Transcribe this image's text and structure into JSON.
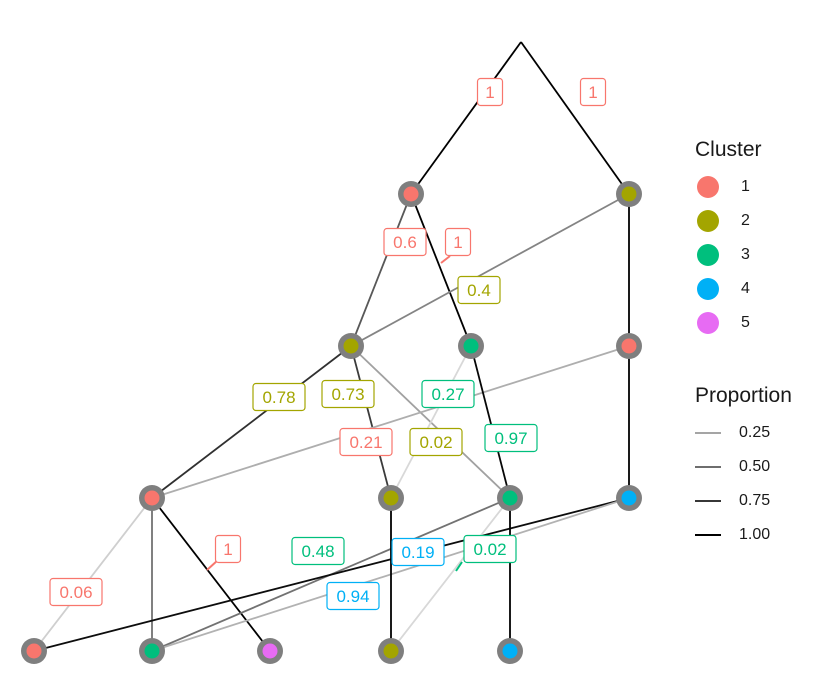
{
  "nodes": [
    {
      "id": "k1c1",
      "cluster": 1
    },
    {
      "id": "k2c1",
      "cluster": 1
    },
    {
      "id": "k2c2",
      "cluster": 2
    },
    {
      "id": "k3c2",
      "cluster": 2
    },
    {
      "id": "k3c3",
      "cluster": 3
    },
    {
      "id": "k3c1",
      "cluster": 1
    },
    {
      "id": "k4c1",
      "cluster": 1
    },
    {
      "id": "k4c2",
      "cluster": 2
    },
    {
      "id": "k4c3",
      "cluster": 3
    },
    {
      "id": "k4c4",
      "cluster": 4
    },
    {
      "id": "k5c1",
      "cluster": 1
    },
    {
      "id": "k5c3",
      "cluster": 3
    },
    {
      "id": "k5c5",
      "cluster": 5
    },
    {
      "id": "k5c2",
      "cluster": 2
    },
    {
      "id": "k5c4",
      "cluster": 4
    }
  ],
  "edges": [
    {
      "from": "k1c1",
      "to": "k2c1",
      "proportion": 1,
      "label": "1",
      "label_cluster": 1
    },
    {
      "from": "k1c1",
      "to": "k2c2",
      "proportion": 1,
      "label": "1",
      "label_cluster": 1
    },
    {
      "from": "k2c1",
      "to": "k3c2",
      "proportion": 0.6,
      "label": "0.6",
      "label_cluster": 1
    },
    {
      "from": "k2c1",
      "to": "k3c3",
      "proportion": 1,
      "label": "1",
      "label_cluster": 1
    },
    {
      "from": "k2c2",
      "to": "k3c2",
      "proportion": 0.4,
      "label": "0.4",
      "label_cluster": 2
    },
    {
      "from": "k2c2",
      "to": "k3c1",
      "proportion": 1,
      "label": "",
      "label_cluster": 2
    },
    {
      "from": "k3c2",
      "to": "k4c1",
      "proportion": 0.78,
      "label": "0.78",
      "label_cluster": 2
    },
    {
      "from": "k3c2",
      "to": "k4c2",
      "proportion": 0.73,
      "label": "0.73",
      "label_cluster": 2
    },
    {
      "from": "k3c2",
      "to": "k4c3",
      "proportion": 0.27,
      "label": "0.27",
      "label_cluster": 3
    },
    {
      "from": "k3c1",
      "to": "k4c1",
      "proportion": 0.21,
      "label": "0.21",
      "label_cluster": 1
    },
    {
      "from": "k3c3",
      "to": "k4c2",
      "proportion": 0.02,
      "label": "0.02",
      "label_cluster": 2
    },
    {
      "from": "k3c3",
      "to": "k4c3",
      "proportion": 0.97,
      "label": "0.97",
      "label_cluster": 3
    },
    {
      "from": "k3c1",
      "to": "k4c4",
      "proportion": 1,
      "label": "",
      "label_cluster": 4
    },
    {
      "from": "k4c1",
      "to": "k5c1",
      "proportion": 0.06,
      "label": "0.06",
      "label_cluster": 1
    },
    {
      "from": "k4c1",
      "to": "k5c3",
      "proportion": 0.48,
      "label": "",
      "label_cluster": 3
    },
    {
      "from": "k4c1",
      "to": "k5c5",
      "proportion": 1,
      "label": "1",
      "label_cluster": 1
    },
    {
      "from": "k4c3",
      "to": "k5c3",
      "proportion": 0.48,
      "label": "0.48",
      "label_cluster": 3
    },
    {
      "from": "k4c4",
      "to": "k5c1",
      "proportion": 0.94,
      "label": "0.94",
      "label_cluster": 4
    },
    {
      "from": "k4c4",
      "to": "k5c3",
      "proportion": 0.19,
      "label": "0.19",
      "label_cluster": 4
    },
    {
      "from": "k4c2",
      "to": "k5c2",
      "proportion": 1,
      "label": "",
      "label_cluster": 2
    },
    {
      "from": "k4c3",
      "to": "k5c2",
      "proportion": 0.02,
      "label": "0.02",
      "label_cluster": 3
    },
    {
      "from": "k4c3",
      "to": "k5c4",
      "proportion": 1,
      "label": "",
      "label_cluster": 3
    }
  ],
  "cluster_colors": {
    "1": "#F8766D",
    "2": "#A3A500",
    "3": "#00BF7D",
    "4": "#00B0F6",
    "5": "#E76BF3"
  },
  "legend": {
    "cluster": {
      "title": "Cluster",
      "items": [
        {
          "label": "1",
          "color": "#F8766D"
        },
        {
          "label": "2",
          "color": "#A3A500"
        },
        {
          "label": "3",
          "color": "#00BF7D"
        },
        {
          "label": "4",
          "color": "#00B0F6"
        },
        {
          "label": "5",
          "color": "#E76BF3"
        }
      ]
    },
    "proportion": {
      "title": "Proportion",
      "items": [
        {
          "label": "0.25",
          "value": 0.25
        },
        {
          "label": "0.50",
          "value": 0.5
        },
        {
          "label": "0.75",
          "value": 0.75
        },
        {
          "label": "1.00",
          "value": 1.0
        }
      ]
    }
  }
}
